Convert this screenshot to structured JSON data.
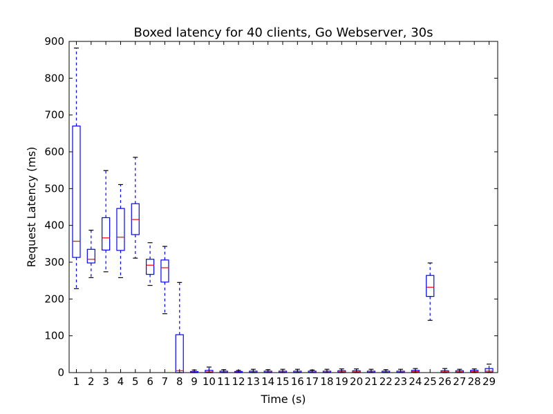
{
  "chart_data": {
    "type": "boxplot",
    "title": "Boxed latency for 40 clients, Go Webserver, 30s",
    "xlabel": "Time (s)",
    "ylabel": "Request Latency (ms)",
    "ylim": [
      0,
      900
    ],
    "yticks": [
      0,
      100,
      200,
      300,
      400,
      500,
      600,
      700,
      800,
      900
    ],
    "categories": [
      "1",
      "2",
      "3",
      "4",
      "5",
      "6",
      "7",
      "8",
      "9",
      "10",
      "11",
      "12",
      "13",
      "14",
      "15",
      "16",
      "17",
      "18",
      "19",
      "20",
      "21",
      "22",
      "23",
      "24",
      "25",
      "26",
      "27",
      "28",
      "29"
    ],
    "boxes": [
      {
        "min": 228,
        "q1": 313,
        "median": 357,
        "q3": 670,
        "max": 882
      },
      {
        "min": 258,
        "q1": 298,
        "median": 308,
        "q3": 335,
        "max": 387
      },
      {
        "min": 274,
        "q1": 333,
        "median": 366,
        "q3": 421,
        "max": 549
      },
      {
        "min": 258,
        "q1": 332,
        "median": 368,
        "q3": 446,
        "max": 511
      },
      {
        "min": 311,
        "q1": 375,
        "median": 416,
        "q3": 459,
        "max": 585
      },
      {
        "min": 237,
        "q1": 267,
        "median": 292,
        "q3": 308,
        "max": 353
      },
      {
        "min": 160,
        "q1": 246,
        "median": 285,
        "q3": 306,
        "max": 343
      },
      {
        "min": 0,
        "q1": 0,
        "median": 5,
        "q3": 103,
        "max": 245
      },
      {
        "min": 0,
        "q1": 0,
        "median": 1,
        "q3": 3,
        "max": 7
      },
      {
        "min": 0,
        "q1": 0,
        "median": 2,
        "q3": 6,
        "max": 15
      },
      {
        "min": 0,
        "q1": 0,
        "median": 1,
        "q3": 4,
        "max": 8
      },
      {
        "min": 0,
        "q1": 0,
        "median": 1,
        "q3": 3,
        "max": 6
      },
      {
        "min": 0,
        "q1": 0,
        "median": 1,
        "q3": 4,
        "max": 9
      },
      {
        "min": 0,
        "q1": 0,
        "median": 1,
        "q3": 4,
        "max": 8
      },
      {
        "min": 0,
        "q1": 0,
        "median": 1,
        "q3": 4,
        "max": 9
      },
      {
        "min": 0,
        "q1": 0,
        "median": 1,
        "q3": 4,
        "max": 9
      },
      {
        "min": 0,
        "q1": 0,
        "median": 1,
        "q3": 4,
        "max": 7
      },
      {
        "min": 0,
        "q1": 0,
        "median": 1,
        "q3": 4,
        "max": 9
      },
      {
        "min": 0,
        "q1": 0,
        "median": 2,
        "q3": 5,
        "max": 10
      },
      {
        "min": 0,
        "q1": 0,
        "median": 2,
        "q3": 5,
        "max": 10
      },
      {
        "min": 0,
        "q1": 0,
        "median": 1,
        "q3": 4,
        "max": 9
      },
      {
        "min": 0,
        "q1": 0,
        "median": 1,
        "q3": 4,
        "max": 8
      },
      {
        "min": 0,
        "q1": 0,
        "median": 1,
        "q3": 4,
        "max": 9
      },
      {
        "min": 0,
        "q1": 1,
        "median": 3,
        "q3": 6,
        "max": 11
      },
      {
        "min": 142,
        "q1": 207,
        "median": 232,
        "q3": 264,
        "max": 298
      },
      {
        "min": 0,
        "q1": 0,
        "median": 2,
        "q3": 5,
        "max": 11
      },
      {
        "min": 0,
        "q1": 0,
        "median": 2,
        "q3": 5,
        "max": 9
      },
      {
        "min": 0,
        "q1": 1,
        "median": 3,
        "q3": 6,
        "max": 10
      },
      {
        "min": 0,
        "q1": 1,
        "median": 4,
        "q3": 11,
        "max": 23
      }
    ],
    "colors": {
      "box": "#0000ff",
      "median": "#ff0000",
      "cap": "#000000",
      "frame": "#000000"
    },
    "grid": false
  }
}
